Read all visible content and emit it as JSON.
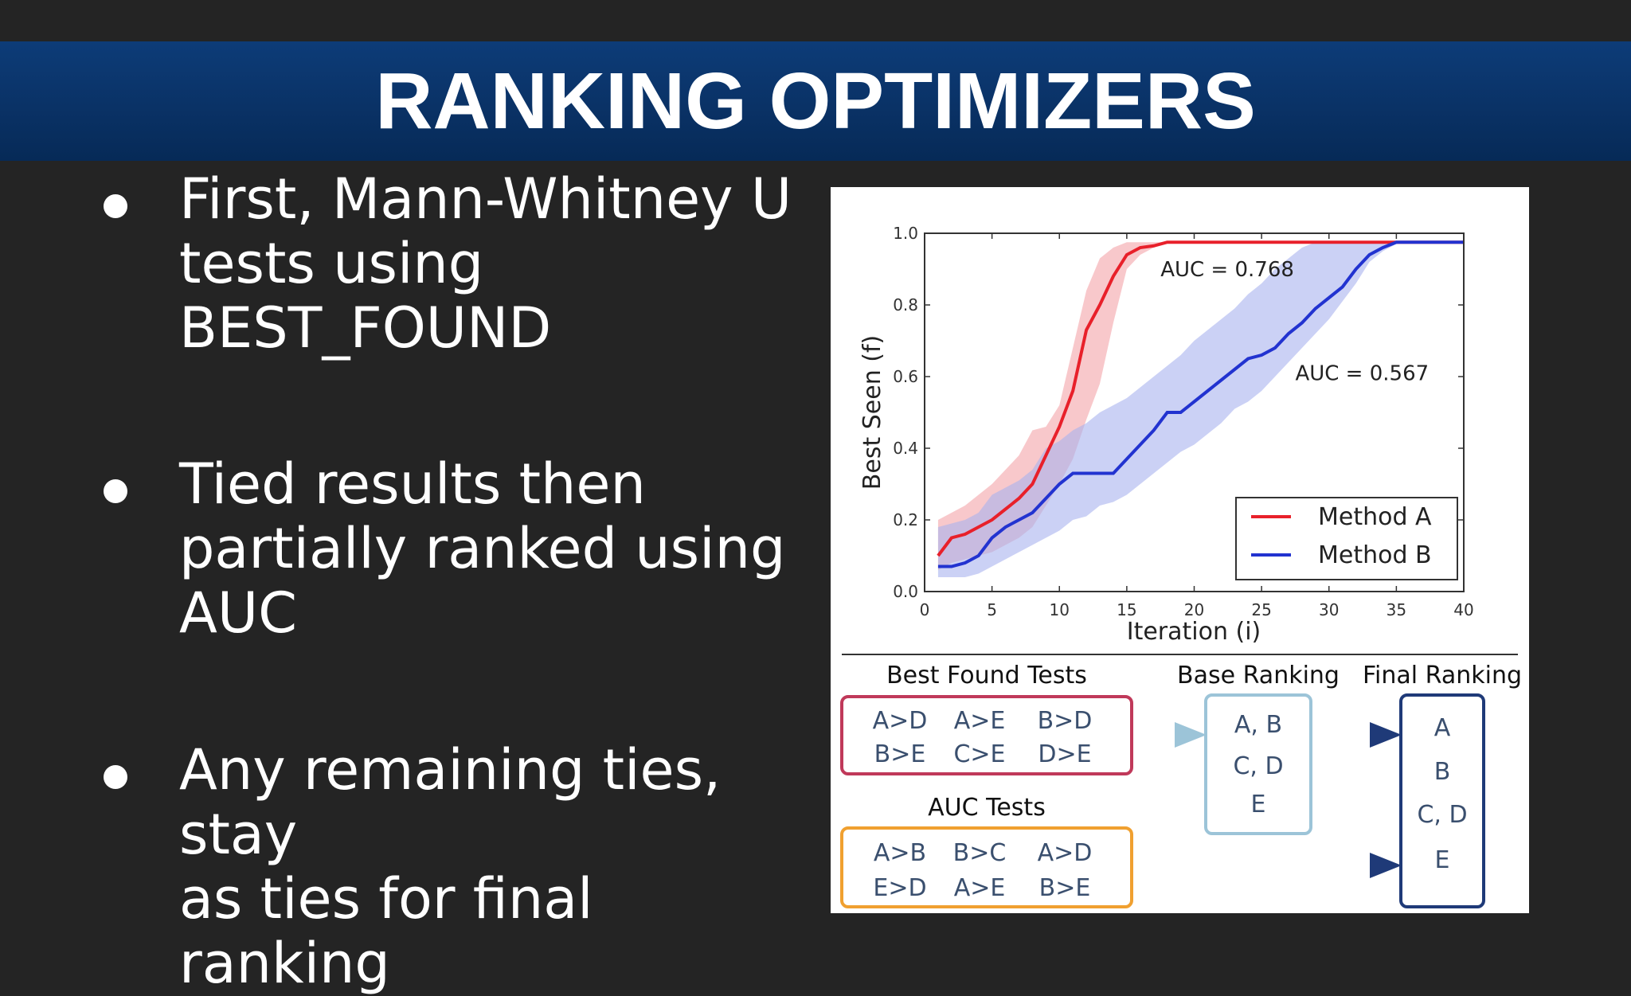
{
  "slide": {
    "title": "RANKING OPTIMIZERS",
    "bullets": [
      {
        "lines": [
          "First, Mann-Whitney U",
          "tests using",
          "BEST_FOUND"
        ]
      },
      {
        "lines": [
          "Tied results then",
          "partially ranked using",
          "AUC"
        ]
      },
      {
        "lines": [
          "Any remaining ties, stay",
          "as ties for final ranking"
        ]
      }
    ]
  },
  "chart_data": {
    "type": "line",
    "xlabel": "Iteration (i)",
    "ylabel": "Best Seen (f)",
    "xlim": [
      0,
      40
    ],
    "ylim": [
      0,
      1.0
    ],
    "xticks": [
      "0",
      "5",
      "10",
      "15",
      "20",
      "25",
      "30",
      "35",
      "40"
    ],
    "yticks": [
      "0.0",
      "0.2",
      "0.4",
      "0.6",
      "0.8",
      "1.0"
    ],
    "legend_position": "lower-right",
    "annotations": [
      {
        "text": "AUC = 0.768",
        "x": 17.5,
        "y": 0.88
      },
      {
        "text": "AUC = 0.567",
        "x": 27.5,
        "y": 0.59
      }
    ],
    "series": [
      {
        "name": "Method A",
        "color": "#e8202a",
        "band_color": "#f4a3a8",
        "x": [
          1,
          2,
          3,
          4,
          5,
          6,
          7,
          8,
          9,
          10,
          11,
          12,
          13,
          14,
          15,
          16,
          17,
          18,
          19,
          20,
          22,
          25,
          30,
          35,
          40
        ],
        "y": [
          0.1,
          0.15,
          0.16,
          0.18,
          0.2,
          0.23,
          0.26,
          0.3,
          0.38,
          0.46,
          0.56,
          0.73,
          0.8,
          0.88,
          0.94,
          0.96,
          0.965,
          0.975,
          0.975,
          0.975,
          0.975,
          0.975,
          0.975,
          0.975,
          0.975
        ],
        "lower": [
          0.06,
          0.08,
          0.09,
          0.1,
          0.11,
          0.13,
          0.15,
          0.18,
          0.24,
          0.3,
          0.37,
          0.48,
          0.58,
          0.75,
          0.9,
          0.94,
          0.96,
          0.975,
          0.975,
          0.975,
          0.975,
          0.975,
          0.975,
          0.975,
          0.975
        ],
        "upper": [
          0.2,
          0.22,
          0.24,
          0.27,
          0.3,
          0.34,
          0.38,
          0.45,
          0.46,
          0.52,
          0.68,
          0.84,
          0.93,
          0.96,
          0.975,
          0.975,
          0.975,
          0.975,
          0.975,
          0.975,
          0.975,
          0.975,
          0.975,
          0.975,
          0.975
        ]
      },
      {
        "name": "Method B",
        "color": "#2233d0",
        "band_color": "#a9b2ee",
        "x": [
          1,
          2,
          3,
          4,
          5,
          6,
          7,
          8,
          9,
          10,
          11,
          12,
          13,
          14,
          15,
          16,
          17,
          18,
          19,
          20,
          21,
          22,
          23,
          24,
          25,
          26,
          27,
          28,
          29,
          30,
          31,
          32,
          33,
          34,
          35,
          36,
          37,
          38,
          39,
          40
        ],
        "y": [
          0.07,
          0.07,
          0.08,
          0.1,
          0.15,
          0.18,
          0.2,
          0.22,
          0.26,
          0.3,
          0.33,
          0.33,
          0.33,
          0.33,
          0.37,
          0.41,
          0.45,
          0.5,
          0.5,
          0.53,
          0.56,
          0.59,
          0.62,
          0.65,
          0.66,
          0.68,
          0.72,
          0.75,
          0.79,
          0.82,
          0.85,
          0.9,
          0.94,
          0.96,
          0.975,
          0.975,
          0.975,
          0.975,
          0.975,
          0.975
        ],
        "lower": [
          0.04,
          0.04,
          0.04,
          0.05,
          0.07,
          0.09,
          0.11,
          0.13,
          0.15,
          0.17,
          0.2,
          0.21,
          0.24,
          0.25,
          0.27,
          0.3,
          0.33,
          0.36,
          0.39,
          0.41,
          0.44,
          0.47,
          0.51,
          0.53,
          0.56,
          0.6,
          0.64,
          0.68,
          0.72,
          0.76,
          0.81,
          0.86,
          0.92,
          0.95,
          0.97,
          0.975,
          0.975,
          0.975,
          0.975,
          0.975
        ],
        "upper": [
          0.18,
          0.19,
          0.2,
          0.22,
          0.27,
          0.29,
          0.31,
          0.34,
          0.4,
          0.42,
          0.45,
          0.47,
          0.5,
          0.52,
          0.54,
          0.57,
          0.6,
          0.63,
          0.66,
          0.7,
          0.73,
          0.76,
          0.79,
          0.83,
          0.86,
          0.9,
          0.93,
          0.96,
          0.975,
          0.975,
          0.975,
          0.975,
          0.975,
          0.975,
          0.975,
          0.975,
          0.975,
          0.975,
          0.975,
          0.975
        ]
      }
    ]
  },
  "diagram": {
    "best_found": {
      "heading": "Best Found Tests",
      "row1": [
        "A>D",
        "A>E",
        "B>D"
      ],
      "row2": [
        "B>E",
        "C>E",
        "D>E"
      ],
      "color": "#c0395a"
    },
    "auc": {
      "heading": "AUC Tests",
      "row1": [
        "A>B",
        "B>C",
        "A>D"
      ],
      "row2": [
        "E>D",
        "A>E",
        "B>E"
      ],
      "color": "#f0a030"
    },
    "base": {
      "heading": "Base Ranking",
      "items": [
        "A, B",
        "C, D",
        "E"
      ],
      "color": "#9cc4d8"
    },
    "final": {
      "heading": "Final Ranking",
      "items": [
        "A",
        "B",
        "C, D",
        "E"
      ],
      "color": "#1f3a78"
    }
  }
}
